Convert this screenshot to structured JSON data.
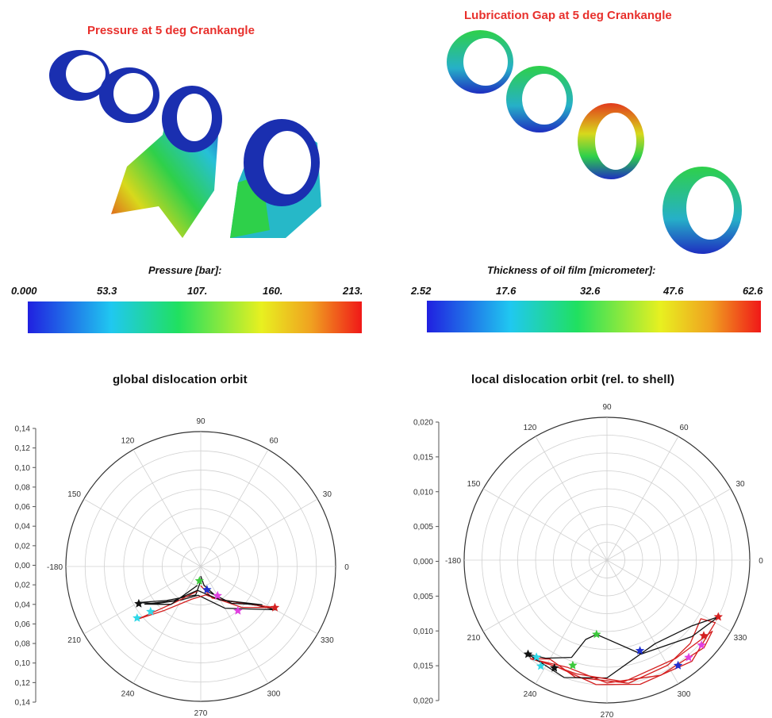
{
  "render_panels": [
    {
      "title": "Pressure at 5 deg Crankangle",
      "colorbar_label": "Pressure [bar]:",
      "ticks": [
        "0.000",
        "53.3",
        "107.",
        "160.",
        "213."
      ]
    },
    {
      "title": "Lubrication Gap at 5 deg Crankangle",
      "colorbar_label": "Thickness of oil film [micrometer]:",
      "ticks": [
        "2.52",
        "17.6",
        "32.6",
        "47.6",
        "62.6"
      ]
    }
  ],
  "colors": {
    "title_red": "#e8302c",
    "curve_red": "#d42020",
    "curve_black": "#111111",
    "grid": "#d0d0d0"
  },
  "chart_data": [
    {
      "type": "polar",
      "title": "global dislocation orbit",
      "radial_ticks": [
        "0,14",
        "0,12",
        "0,10",
        "0,08",
        "0,06",
        "0,04",
        "0,02",
        "0,00",
        "0,02",
        "0,04",
        "0,06",
        "0,08",
        "0,10",
        "0,12",
        "0,14"
      ],
      "angle_ticks": [
        "0",
        "30",
        "60",
        "90",
        "120",
        "150",
        "-180",
        "210",
        "240",
        "270",
        "300",
        "330"
      ],
      "rmax": 0.14,
      "series": [
        {
          "color": "#111111",
          "points": [
            [
              0.015,
              270
            ],
            [
              0.03,
              260
            ],
            [
              0.05,
              225
            ],
            [
              0.075,
              210
            ],
            [
              0.06,
              220
            ],
            [
              0.04,
              240
            ],
            [
              0.03,
              265
            ],
            [
              0.05,
              300
            ],
            [
              0.09,
              330
            ],
            [
              0.07,
              325
            ],
            [
              0.04,
              300
            ],
            [
              0.02,
              280
            ],
            [
              0.01,
              270
            ]
          ]
        },
        {
          "color": "#d42020",
          "points": [
            [
              0.025,
              265
            ],
            [
              0.045,
              235
            ],
            [
              0.085,
              220
            ],
            [
              0.06,
              230
            ],
            [
              0.035,
              255
            ],
            [
              0.03,
              280
            ],
            [
              0.06,
              315
            ],
            [
              0.088,
              331
            ],
            [
              0.06,
              320
            ],
            [
              0.035,
              290
            ],
            [
              0.02,
              270
            ]
          ]
        },
        {
          "color": "#111111",
          "points": [
            [
              0.02,
              260
            ],
            [
              0.05,
              232
            ],
            [
              0.07,
              214
            ],
            [
              0.045,
              232
            ],
            [
              0.025,
              262
            ],
            [
              0.04,
              300
            ],
            [
              0.075,
              328
            ],
            [
              0.05,
              310
            ],
            [
              0.025,
              280
            ]
          ]
        }
      ],
      "markers": [
        {
          "r": 0.015,
          "a": 265,
          "color": "#3cc83c"
        },
        {
          "r": 0.025,
          "a": 285,
          "color": "#1e2fd0"
        },
        {
          "r": 0.07,
          "a": 222,
          "color": "#30d8e8"
        },
        {
          "r": 0.085,
          "a": 219,
          "color": "#30d8e8"
        },
        {
          "r": 0.06,
          "a": 310,
          "color": "#e040e0"
        },
        {
          "r": 0.088,
          "a": 331,
          "color": "#d42020"
        },
        {
          "r": 0.075,
          "a": 211,
          "color": "#111111"
        },
        {
          "r": 0.035,
          "a": 300,
          "color": "#e040e0"
        }
      ]
    },
    {
      "type": "polar",
      "title": "local dislocation orbit (rel. to shell)",
      "radial_ticks": [
        "0,020",
        "0,015",
        "0,010",
        "0,005",
        "0,000",
        "0,005",
        "0,010",
        "0,015",
        "0,020"
      ],
      "angle_ticks": [
        "0",
        "30",
        "60",
        "90",
        "120",
        "150",
        "-180",
        "210",
        "240",
        "270",
        "300",
        "330"
      ],
      "rmax": 0.02,
      "series": [
        {
          "color": "#d42020",
          "points": [
            [
              0.0175,
              232
            ],
            [
              0.0165,
              245
            ],
            [
              0.0175,
              265
            ],
            [
              0.018,
              285
            ],
            [
              0.0185,
              310
            ],
            [
              0.0175,
              330
            ],
            [
              0.0155,
              328
            ],
            [
              0.0165,
              315
            ],
            [
              0.017,
              300
            ],
            [
              0.0175,
              280
            ],
            [
              0.017,
              255
            ],
            [
              0.016,
              240
            ],
            [
              0.0175,
              232
            ]
          ]
        },
        {
          "color": "#111111",
          "points": [
            [
              0.0172,
              230
            ],
            [
              0.0162,
              238
            ],
            [
              0.0145,
              250
            ],
            [
              0.0115,
              255
            ],
            [
              0.0105,
              262
            ],
            [
              0.014,
              290
            ],
            [
              0.016,
              318
            ],
            [
              0.0175,
              333
            ],
            [
              0.015,
              322
            ],
            [
              0.0135,
              300
            ],
            [
              0.0165,
              270
            ],
            [
              0.0175,
              250
            ],
            [
              0.0172,
              230
            ]
          ]
        },
        {
          "color": "#d42020",
          "points": [
            [
              0.017,
              236
            ],
            [
              0.016,
              250
            ],
            [
              0.0172,
              270
            ],
            [
              0.0178,
              295
            ],
            [
              0.0183,
              318
            ],
            [
              0.0178,
              326
            ],
            [
              0.0168,
              305
            ],
            [
              0.0172,
              278
            ],
            [
              0.0165,
              255
            ],
            [
              0.017,
              236
            ]
          ]
        }
      ],
      "markers": [
        {
          "r": 0.0105,
          "a": 262,
          "color": "#3cc83c"
        },
        {
          "r": 0.0155,
          "a": 252,
          "color": "#3cc83c"
        },
        {
          "r": 0.0172,
          "a": 230,
          "color": "#111111"
        },
        {
          "r": 0.0168,
          "a": 244,
          "color": "#111111"
        },
        {
          "r": 0.0168,
          "a": 234,
          "color": "#30d8e8"
        },
        {
          "r": 0.0175,
          "a": 238,
          "color": "#30d8e8"
        },
        {
          "r": 0.0135,
          "a": 290,
          "color": "#1e2fd0"
        },
        {
          "r": 0.0178,
          "a": 304,
          "color": "#1e2fd0"
        },
        {
          "r": 0.0178,
          "a": 310,
          "color": "#e040e0"
        },
        {
          "r": 0.0178,
          "a": 318,
          "color": "#e040e0"
        },
        {
          "r": 0.0172,
          "a": 322,
          "color": "#d42020"
        },
        {
          "r": 0.0175,
          "a": 333,
          "color": "#d42020"
        }
      ]
    }
  ]
}
